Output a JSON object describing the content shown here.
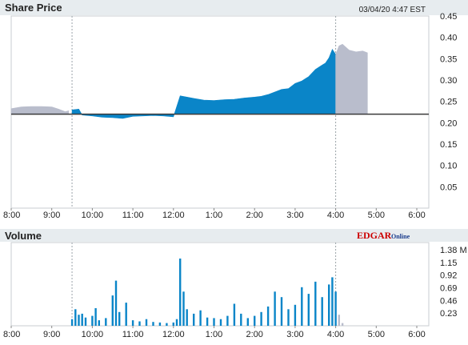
{
  "price_panel": {
    "title": "Share Price",
    "timestamp": "03/04/20  4:47 EST"
  },
  "volume_panel": {
    "title": "Volume",
    "logo_text": "EDGAR",
    "logo_suffix": "Online"
  },
  "colors": {
    "regular_session": "#0a85c8",
    "extended_hours": "#b9bdcc",
    "baseline": "#3a3a3a",
    "panel_header": "#e7ecef",
    "session_marker": "#9aa3a8"
  },
  "chart_data": [
    {
      "type": "area",
      "title": "Share Price",
      "x_tick_labels": [
        "8:00",
        "9:00",
        "10:00",
        "11:00",
        "12:00",
        "1:00",
        "2:00",
        "3:00",
        "4:00",
        "5:00",
        "6:00"
      ],
      "y_tick_labels": [
        "0.45",
        "0.40",
        "0.35",
        "0.30",
        "0.25",
        "0.20",
        "0.15",
        "0.10",
        "0.05"
      ],
      "ylim": [
        0.0,
        0.45
      ],
      "baseline": 0.22,
      "session_markers": [
        "9:30",
        "4:00"
      ],
      "series": [
        {
          "segment": "pre-market",
          "x": [
            "8:00",
            "8:15",
            "8:30",
            "8:45",
            "9:00",
            "9:10",
            "9:20",
            "9:25"
          ],
          "values": [
            0.233,
            0.237,
            0.238,
            0.238,
            0.237,
            0.232,
            0.226,
            0.228
          ]
        },
        {
          "segment": "regular",
          "x": [
            "9:30",
            "9:40",
            "9:45",
            "10:00",
            "10:15",
            "10:30",
            "10:45",
            "11:00",
            "11:15",
            "11:30",
            "11:45",
            "12:00",
            "12:10",
            "12:20",
            "12:30",
            "12:45",
            "1:00",
            "1:15",
            "1:30",
            "1:45",
            "2:00",
            "2:10",
            "2:20",
            "2:30",
            "2:40",
            "2:50",
            "3:00",
            "3:10",
            "3:20",
            "3:30",
            "3:40",
            "3:45",
            "3:50",
            "3:55",
            "4:00"
          ],
          "values": [
            0.23,
            0.232,
            0.218,
            0.216,
            0.213,
            0.212,
            0.21,
            0.215,
            0.216,
            0.217,
            0.216,
            0.214,
            0.263,
            0.26,
            0.257,
            0.253,
            0.252,
            0.254,
            0.255,
            0.258,
            0.26,
            0.262,
            0.266,
            0.272,
            0.278,
            0.28,
            0.292,
            0.298,
            0.308,
            0.325,
            0.335,
            0.34,
            0.352,
            0.372,
            0.36
          ]
        },
        {
          "segment": "after-hours",
          "x": [
            "4:00",
            "4:05",
            "4:10",
            "4:20",
            "4:30",
            "4:40",
            "4:47"
          ],
          "values": [
            0.36,
            0.38,
            0.384,
            0.37,
            0.366,
            0.368,
            0.364
          ]
        }
      ]
    },
    {
      "type": "bar",
      "title": "Volume",
      "x_tick_labels": [
        "8:00",
        "9:00",
        "10:00",
        "11:00",
        "12:00",
        "1:00",
        "2:00",
        "3:00",
        "4:00",
        "5:00",
        "6:00"
      ],
      "y_tick_labels": [
        "1.38 M",
        "1.15",
        "0.92",
        "0.69",
        "0.46",
        "0.23"
      ],
      "ylim": [
        0.0,
        1.38
      ],
      "unit": "M",
      "x": [
        "9:30",
        "9:35",
        "9:40",
        "9:45",
        "9:50",
        "10:00",
        "10:05",
        "10:10",
        "10:20",
        "10:30",
        "10:35",
        "10:40",
        "10:50",
        "11:00",
        "11:10",
        "11:20",
        "11:30",
        "11:40",
        "11:50",
        "12:00",
        "12:05",
        "12:10",
        "12:15",
        "12:20",
        "12:30",
        "12:40",
        "12:50",
        "1:00",
        "1:10",
        "1:20",
        "1:30",
        "1:40",
        "1:50",
        "2:00",
        "2:10",
        "2:20",
        "2:30",
        "2:40",
        "2:50",
        "3:00",
        "3:10",
        "3:20",
        "3:30",
        "3:40",
        "3:50",
        "3:55",
        "4:00",
        "4:05",
        "4:10"
      ],
      "values": [
        0.12,
        0.3,
        0.2,
        0.22,
        0.15,
        0.18,
        0.32,
        0.1,
        0.14,
        0.55,
        0.82,
        0.25,
        0.42,
        0.1,
        0.08,
        0.12,
        0.07,
        0.06,
        0.05,
        0.06,
        0.12,
        1.22,
        0.62,
        0.3,
        0.22,
        0.28,
        0.15,
        0.14,
        0.12,
        0.18,
        0.4,
        0.22,
        0.14,
        0.18,
        0.25,
        0.35,
        0.62,
        0.52,
        0.3,
        0.38,
        0.7,
        0.58,
        0.8,
        0.52,
        0.75,
        0.88,
        0.62,
        0.2,
        0.05
      ]
    }
  ]
}
